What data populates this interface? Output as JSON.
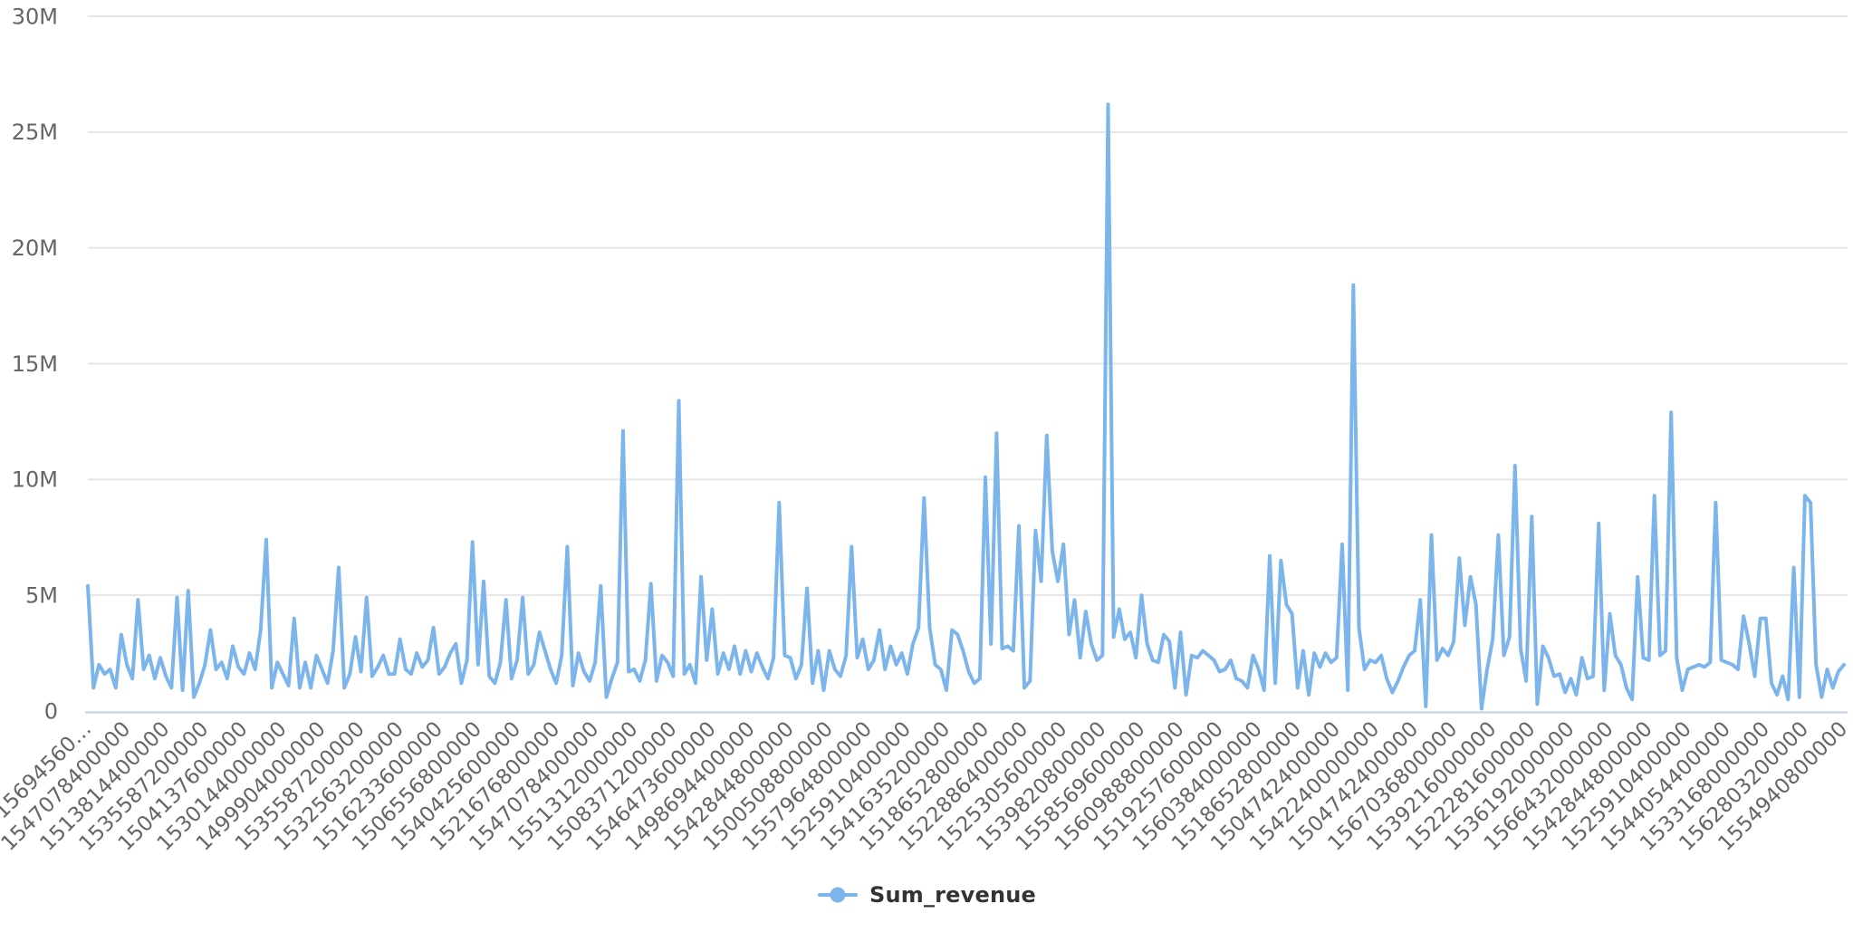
{
  "legend": {
    "label": "Sum_revenue"
  },
  "colors": {
    "series_line": "#7cb5ec",
    "axis_line": "#ccd6eb",
    "gridline": "#e6e6e6",
    "tick_label": "#666666",
    "legend_text": "#333333",
    "background": "#ffffff"
  },
  "chart_data": {
    "type": "line",
    "title": "",
    "xlabel": "",
    "ylabel": "",
    "grid": "horizontal",
    "legend_position": "bottom-center",
    "ylim_m": [
      0,
      30
    ],
    "y_tick_values_m": [
      0,
      5,
      10,
      15,
      20,
      25,
      30
    ],
    "y_tick_labels": [
      "0",
      "5M",
      "10M",
      "15M",
      "20M",
      "25M",
      "30M"
    ],
    "points_per_x_tick": 7,
    "x_tick_labels": [
      "15694560…",
      "1547078400000",
      "1513814400000",
      "1535587200000",
      "1504137600000",
      "1530144000000",
      "1499904000000",
      "1535587200000",
      "1532563200000",
      "1516233600000",
      "1506556800000",
      "1540425600000",
      "1521676800000",
      "1547078400000",
      "1551312000000",
      "1508371200000",
      "1546473600000",
      "1498694400000",
      "1542844800000",
      "1500508800000",
      "1557964800000",
      "1525910400000",
      "1541635200000",
      "1518652800000",
      "1522886400000",
      "1525305600000",
      "1539820800000",
      "1558569600000",
      "1560988800000",
      "1519257600000",
      "1560384000000",
      "1518652800000",
      "1504742400000",
      "1542240000000",
      "1504742400000",
      "1567036800000",
      "1539216000000",
      "1522281600000",
      "1536192000000",
      "1566432000000",
      "1542844800000",
      "1525910400000",
      "1544054400000",
      "1533168000000",
      "1562803200000",
      "1554940800000"
    ],
    "series": [
      {
        "name": "Sum_revenue",
        "unit": "M",
        "values_m": [
          5.4,
          1.0,
          2.0,
          1.6,
          1.8,
          1.0,
          3.3,
          2.0,
          1.4,
          4.8,
          1.8,
          2.4,
          1.4,
          2.3,
          1.5,
          1.0,
          4.9,
          0.9,
          5.2,
          0.6,
          1.2,
          2.0,
          3.5,
          1.8,
          2.1,
          1.4,
          2.8,
          1.9,
          1.6,
          2.5,
          1.8,
          3.5,
          7.4,
          1.0,
          2.1,
          1.6,
          1.1,
          4.0,
          1.0,
          2.1,
          1.0,
          2.4,
          1.8,
          1.2,
          2.6,
          6.2,
          1.0,
          1.6,
          3.2,
          1.7,
          4.9,
          1.5,
          1.9,
          2.4,
          1.6,
          1.6,
          3.1,
          1.8,
          1.6,
          2.5,
          1.9,
          2.2,
          3.6,
          1.6,
          1.9,
          2.5,
          2.9,
          1.2,
          2.2,
          7.3,
          2.0,
          5.6,
          1.5,
          1.2,
          2.1,
          4.8,
          1.4,
          2.2,
          4.9,
          1.6,
          2.0,
          3.4,
          2.6,
          1.8,
          1.2,
          2.4,
          7.1,
          1.1,
          2.5,
          1.7,
          1.3,
          2.1,
          5.4,
          0.6,
          1.4,
          2.1,
          12.1,
          1.7,
          1.8,
          1.3,
          2.2,
          5.5,
          1.3,
          2.4,
          2.1,
          1.5,
          13.4,
          1.6,
          2.0,
          1.2,
          5.8,
          2.2,
          4.4,
          1.6,
          2.5,
          1.8,
          2.8,
          1.6,
          2.6,
          1.7,
          2.5,
          1.9,
          1.4,
          2.3,
          9.0,
          2.4,
          2.3,
          1.4,
          2.0,
          5.3,
          1.2,
          2.6,
          0.9,
          2.6,
          1.8,
          1.5,
          2.4,
          7.1,
          2.3,
          3.1,
          1.8,
          2.2,
          3.5,
          1.8,
          2.8,
          2.0,
          2.5,
          1.6,
          2.9,
          3.6,
          9.2,
          3.6,
          2.0,
          1.8,
          0.9,
          3.5,
          3.3,
          2.6,
          1.7,
          1.2,
          1.4,
          10.1,
          2.9,
          12.0,
          2.7,
          2.8,
          2.6,
          8.0,
          1.0,
          1.3,
          7.8,
          5.6,
          11.9,
          6.9,
          5.6,
          7.2,
          3.3,
          4.8,
          2.3,
          4.3,
          2.9,
          2.2,
          2.4,
          26.2,
          3.2,
          4.4,
          3.1,
          3.4,
          2.3,
          5.0,
          2.9,
          2.2,
          2.1,
          3.3,
          3.0,
          1.0,
          3.4,
          0.7,
          2.4,
          2.3,
          2.6,
          2.4,
          2.2,
          1.7,
          1.8,
          2.2,
          1.4,
          1.3,
          1.0,
          2.4,
          1.8,
          0.9,
          6.7,
          1.2,
          6.5,
          4.6,
          4.2,
          1.0,
          2.6,
          0.7,
          2.5,
          1.9,
          2.5,
          2.1,
          2.3,
          7.2,
          0.9,
          18.4,
          3.6,
          1.8,
          2.2,
          2.1,
          2.4,
          1.4,
          0.8,
          1.3,
          1.9,
          2.4,
          2.6,
          4.8,
          0.2,
          7.6,
          2.2,
          2.7,
          2.4,
          3.0,
          6.6,
          3.7,
          5.8,
          4.6,
          0.1,
          1.8,
          3.1,
          7.6,
          2.4,
          3.2,
          10.6,
          2.7,
          1.3,
          8.4,
          0.3,
          2.8,
          2.3,
          1.5,
          1.6,
          0.8,
          1.4,
          0.7,
          2.3,
          1.4,
          1.5,
          8.1,
          0.9,
          4.2,
          2.4,
          2.0,
          1.0,
          0.5,
          5.8,
          2.3,
          2.2,
          9.3,
          2.4,
          2.6,
          12.9,
          2.3,
          0.9,
          1.8,
          1.9,
          2.0,
          1.9,
          2.1,
          9.0,
          2.2,
          2.1,
          2.0,
          1.8,
          4.1,
          2.9,
          1.5,
          4.0,
          4.0,
          1.2,
          0.7,
          1.5,
          0.5,
          6.2,
          0.6,
          9.3,
          9.0,
          2.0,
          0.6,
          1.8,
          1.0,
          1.7,
          2.0
        ]
      }
    ]
  }
}
